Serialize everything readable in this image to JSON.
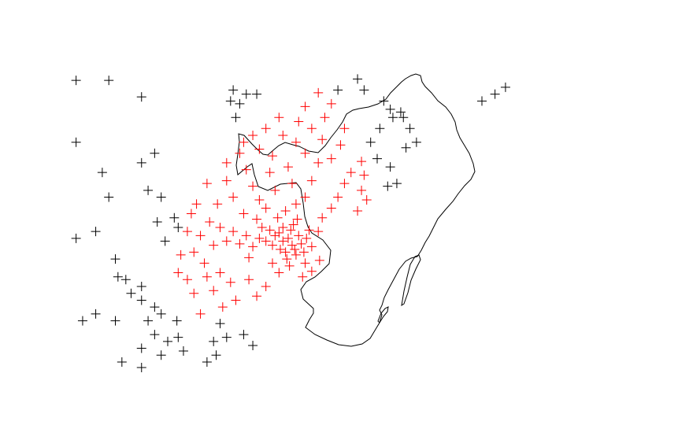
{
  "map": {
    "type": "point-pattern-map",
    "outline_color": "#000000",
    "inside_marker_color": "#ff0000",
    "outside_marker_color": "#000000",
    "marker_shape": "plus",
    "lon_range": [
      2.0,
      2.4
    ],
    "lat_range": [
      41.3,
      41.52
    ],
    "points_inside": [
      [
        2.175,
        41.385
      ],
      [
        2.172,
        41.39
      ],
      [
        2.168,
        41.388
      ],
      [
        2.18,
        41.392
      ],
      [
        2.177,
        41.382
      ],
      [
        2.17,
        41.38
      ],
      [
        2.165,
        41.394
      ],
      [
        2.182,
        41.386
      ],
      [
        2.174,
        41.396
      ],
      [
        2.16,
        41.385
      ],
      [
        2.178,
        41.378
      ],
      [
        2.168,
        41.398
      ],
      [
        2.186,
        41.39
      ],
      [
        2.162,
        41.392
      ],
      [
        2.171,
        41.375
      ],
      [
        2.176,
        41.4
      ],
      [
        2.184,
        41.38
      ],
      [
        2.158,
        41.396
      ],
      [
        2.166,
        41.382
      ],
      [
        2.179,
        41.404
      ],
      [
        2.155,
        41.388
      ],
      [
        2.188,
        41.396
      ],
      [
        2.173,
        41.37
      ],
      [
        2.15,
        41.39
      ],
      [
        2.164,
        41.405
      ],
      [
        2.185,
        41.372
      ],
      [
        2.145,
        41.384
      ],
      [
        2.152,
        41.398
      ],
      [
        2.17,
        41.41
      ],
      [
        2.19,
        41.384
      ],
      [
        2.14,
        41.392
      ],
      [
        2.16,
        41.372
      ],
      [
        2.195,
        41.395
      ],
      [
        2.148,
        41.404
      ],
      [
        2.178,
        41.415
      ],
      [
        2.135,
        41.386
      ],
      [
        2.155,
        41.412
      ],
      [
        2.165,
        41.365
      ],
      [
        2.13,
        41.395
      ],
      [
        2.142,
        41.376
      ],
      [
        2.15,
        41.418
      ],
      [
        2.185,
        41.42
      ],
      [
        2.125,
        41.388
      ],
      [
        2.162,
        41.425
      ],
      [
        2.198,
        41.405
      ],
      [
        2.138,
        41.408
      ],
      [
        2.12,
        41.398
      ],
      [
        2.175,
        41.43
      ],
      [
        2.145,
        41.428
      ],
      [
        2.205,
        41.412
      ],
      [
        2.19,
        41.432
      ],
      [
        2.115,
        41.385
      ],
      [
        2.13,
        41.42
      ],
      [
        2.158,
        41.438
      ],
      [
        2.112,
        41.402
      ],
      [
        2.21,
        41.42
      ],
      [
        2.172,
        41.442
      ],
      [
        2.14,
        41.44
      ],
      [
        2.195,
        41.445
      ],
      [
        2.105,
        41.392
      ],
      [
        2.125,
        41.432
      ],
      [
        2.215,
        41.43
      ],
      [
        2.185,
        41.452
      ],
      [
        2.16,
        41.45
      ],
      [
        2.1,
        41.38
      ],
      [
        2.118,
        41.415
      ],
      [
        2.205,
        41.448
      ],
      [
        2.15,
        41.455
      ],
      [
        2.178,
        41.46
      ],
      [
        2.22,
        41.438
      ],
      [
        2.108,
        41.372
      ],
      [
        2.135,
        41.452
      ],
      [
        2.198,
        41.462
      ],
      [
        2.168,
        41.465
      ],
      [
        2.225,
        41.41
      ],
      [
        2.12,
        41.365
      ],
      [
        2.145,
        41.465
      ],
      [
        2.19,
        41.47
      ],
      [
        2.212,
        41.458
      ],
      [
        2.095,
        41.395
      ],
      [
        2.128,
        41.358
      ],
      [
        2.142,
        41.36
      ],
      [
        2.155,
        41.355
      ],
      [
        2.132,
        41.345
      ],
      [
        2.115,
        41.352
      ],
      [
        2.148,
        41.348
      ],
      [
        2.122,
        41.34
      ],
      [
        2.105,
        41.335
      ],
      [
        2.095,
        41.36
      ],
      [
        2.228,
        41.425
      ],
      [
        2.232,
        41.418
      ],
      [
        2.18,
        41.475
      ],
      [
        2.2,
        41.478
      ],
      [
        2.165,
        41.478
      ],
      [
        2.215,
        41.47
      ],
      [
        2.155,
        41.47
      ],
      [
        2.185,
        41.486
      ],
      [
        2.205,
        41.488
      ],
      [
        2.195,
        41.496
      ],
      [
        2.228,
        41.446
      ],
      [
        2.19,
        41.366
      ],
      [
        2.196,
        41.374
      ],
      [
        2.183,
        41.362
      ],
      [
        2.102,
        41.415
      ],
      [
        2.11,
        41.43
      ],
      [
        2.125,
        41.445
      ],
      [
        2.138,
        41.46
      ],
      [
        2.23,
        41.436
      ],
      [
        2.11,
        41.362
      ],
      [
        2.1,
        41.35
      ],
      [
        2.09,
        41.378
      ],
      [
        2.088,
        41.365
      ],
      [
        2.098,
        41.408
      ]
    ],
    "points_outside": [
      [
        2.01,
        41.505
      ],
      [
        2.035,
        41.505
      ],
      [
        2.06,
        41.493
      ],
      [
        2.13,
        41.498
      ],
      [
        2.14,
        41.495
      ],
      [
        2.135,
        41.488
      ],
      [
        2.148,
        41.495
      ],
      [
        2.132,
        41.478
      ],
      [
        2.128,
        41.49
      ],
      [
        2.01,
        41.46
      ],
      [
        2.03,
        41.438
      ],
      [
        2.035,
        41.42
      ],
      [
        2.06,
        41.445
      ],
      [
        2.07,
        41.452
      ],
      [
        2.065,
        41.425
      ],
      [
        2.075,
        41.42
      ],
      [
        2.085,
        41.405
      ],
      [
        2.088,
        41.398
      ],
      [
        2.072,
        41.402
      ],
      [
        2.078,
        41.388
      ],
      [
        2.01,
        41.39
      ],
      [
        2.025,
        41.395
      ],
      [
        2.04,
        41.375
      ],
      [
        2.042,
        41.362
      ],
      [
        2.048,
        41.36
      ],
      [
        2.052,
        41.35
      ],
      [
        2.06,
        41.345
      ],
      [
        2.06,
        41.355
      ],
      [
        2.07,
        41.34
      ],
      [
        2.075,
        41.335
      ],
      [
        2.065,
        41.33
      ],
      [
        2.07,
        41.32
      ],
      [
        2.08,
        41.315
      ],
      [
        2.075,
        41.305
      ],
      [
        2.087,
        41.33
      ],
      [
        2.088,
        41.318
      ],
      [
        2.06,
        41.31
      ],
      [
        2.04,
        41.33
      ],
      [
        2.025,
        41.335
      ],
      [
        2.015,
        41.33
      ],
      [
        2.045,
        41.3
      ],
      [
        2.06,
        41.296
      ],
      [
        2.11,
        41.3
      ],
      [
        2.115,
        41.315
      ],
      [
        2.117,
        41.305
      ],
      [
        2.125,
        41.318
      ],
      [
        2.12,
        41.328
      ],
      [
        2.138,
        41.32
      ],
      [
        2.145,
        41.312
      ],
      [
        2.092,
        41.308
      ],
      [
        2.23,
        41.498
      ],
      [
        2.245,
        41.49
      ],
      [
        2.25,
        41.484
      ],
      [
        2.258,
        41.482
      ],
      [
        2.26,
        41.478
      ],
      [
        2.265,
        41.47
      ],
      [
        2.235,
        41.46
      ],
      [
        2.24,
        41.448
      ],
      [
        2.25,
        41.442
      ],
      [
        2.255,
        41.43
      ],
      [
        2.248,
        41.428
      ],
      [
        2.262,
        41.456
      ],
      [
        2.27,
        41.46
      ],
      [
        2.32,
        41.49
      ],
      [
        2.33,
        41.495
      ],
      [
        2.338,
        41.5
      ],
      [
        2.242,
        41.47
      ],
      [
        2.252,
        41.478
      ],
      [
        2.21,
        41.498
      ],
      [
        2.225,
        41.506
      ]
    ]
  }
}
